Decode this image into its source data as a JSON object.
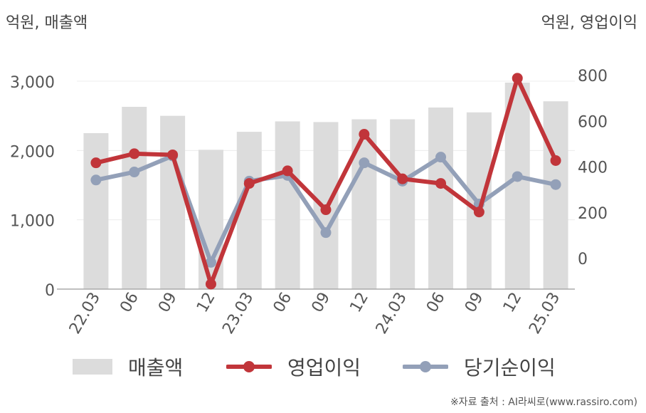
{
  "units": {
    "left": "억원, 매출액",
    "right": "억원, 영업이익"
  },
  "legend": {
    "sales": "매출액",
    "operating_profit": "영업이익",
    "net_income": "당기순이익"
  },
  "source": "※자료 출처 : AI라씨로(www.rassiro.com)",
  "colors": {
    "sales": "#dcdcdc",
    "operating_profit": "#c1353a",
    "net_income": "#93a0b8"
  },
  "chart_data": {
    "type": "bar",
    "categories": [
      "22.03",
      "06",
      "09",
      "12",
      "23.03",
      "06",
      "09",
      "12",
      "24.03",
      "06",
      "09",
      "12",
      "25.03"
    ],
    "series": [
      {
        "name": "매출액",
        "type": "bar",
        "axis": "left",
        "values": [
          2250,
          2630,
          2500,
          2010,
          2270,
          2420,
          2410,
          2450,
          2450,
          2620,
          2550,
          2980,
          2710
        ]
      },
      {
        "name": "영업이익",
        "type": "line",
        "axis": "right",
        "values": [
          415,
          455,
          450,
          -115,
          325,
          380,
          210,
          540,
          345,
          325,
          200,
          785,
          425
        ]
      },
      {
        "name": "당기순이익",
        "type": "line",
        "axis": "right",
        "values": [
          340,
          375,
          445,
          -20,
          335,
          360,
          110,
          415,
          335,
          440,
          235,
          355,
          320
        ]
      }
    ],
    "y_left": {
      "ticks": [
        "0",
        "1,000",
        "2,000",
        "3,000"
      ],
      "tick_values": [
        0,
        1000,
        2000,
        3000
      ],
      "range": [
        0,
        3000
      ]
    },
    "y_right": {
      "ticks": [
        "0",
        "200",
        "400",
        "600",
        "800"
      ],
      "tick_values": [
        0,
        200,
        400,
        600,
        800
      ]
    },
    "grid": true,
    "legend_position": "bottom"
  }
}
